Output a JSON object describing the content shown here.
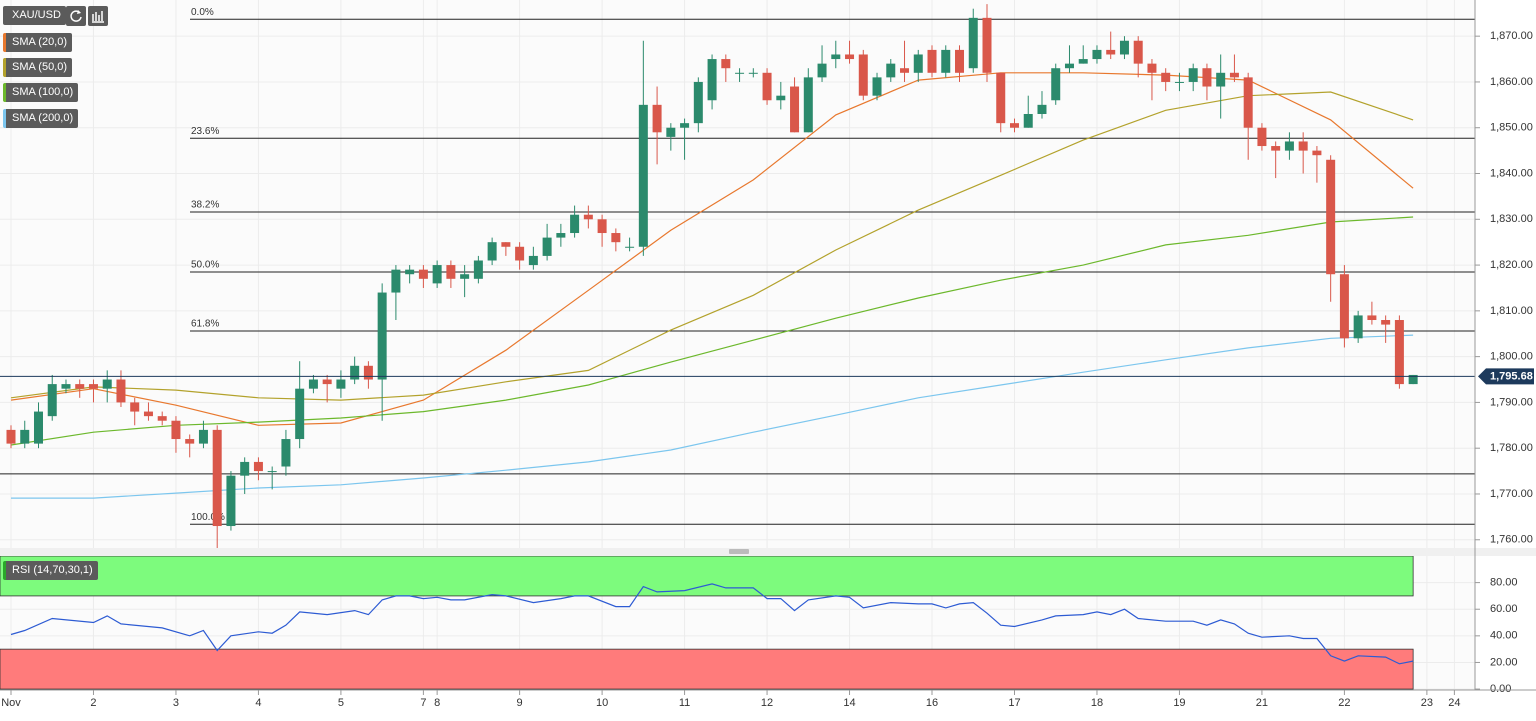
{
  "chart_data": [
    {
      "type": "candlestick",
      "symbol": "XAU/USD",
      "xlim": [
        -0.8,
        106.5
      ],
      "xticks": [
        {
          "value": 0,
          "label": "Nov"
        },
        {
          "value": 6,
          "label": "2"
        },
        {
          "value": 12,
          "label": "3"
        },
        {
          "value": 18,
          "label": "4"
        },
        {
          "value": 24,
          "label": "5"
        },
        {
          "value": 30,
          "label": "7"
        },
        {
          "value": 31,
          "label": "8"
        },
        {
          "value": 37,
          "label": "9"
        },
        {
          "value": 43,
          "label": "10"
        },
        {
          "value": 49,
          "label": "11"
        },
        {
          "value": 55,
          "label": "12"
        },
        {
          "value": 61,
          "label": "14"
        },
        {
          "value": 67,
          "label": "16"
        },
        {
          "value": 73,
          "label": "17"
        },
        {
          "value": 79,
          "label": "18"
        },
        {
          "value": 85,
          "label": "19"
        },
        {
          "value": 91,
          "label": "21"
        },
        {
          "value": 97,
          "label": "22"
        },
        {
          "value": 103,
          "label": "23"
        },
        {
          "value": 105,
          "label": "24"
        }
      ],
      "ylim": [
        1758.2,
        1877.9
      ],
      "yticks": [
        {
          "value": 1760,
          "label": "1,760.00"
        },
        {
          "value": 1770,
          "label": "1,770.00"
        },
        {
          "value": 1780,
          "label": "1,780.00"
        },
        {
          "value": 1790,
          "label": "1,790.00"
        },
        {
          "value": 1800,
          "label": "1,800.00"
        },
        {
          "value": 1810,
          "label": "1,810.00"
        },
        {
          "value": 1820,
          "label": "1,820.00"
        },
        {
          "value": 1830,
          "label": "1,830.00"
        },
        {
          "value": 1840,
          "label": "1,840.00"
        },
        {
          "value": 1850,
          "label": "1,850.00"
        },
        {
          "value": 1860,
          "label": "1,860.00"
        },
        {
          "value": 1870,
          "label": "1,870.00"
        }
      ],
      "grid": true,
      "up_color": "#2b8a6c",
      "down_color": "#d9574a",
      "x": [
        0,
        1,
        2,
        3,
        4,
        5,
        6,
        7,
        8,
        9,
        10,
        11,
        12,
        13,
        14,
        15,
        16,
        17,
        18,
        19,
        20,
        21,
        22,
        23,
        24,
        25,
        26,
        27,
        28,
        29,
        30,
        31,
        32,
        33,
        34,
        35,
        36,
        37,
        38,
        39,
        40,
        41,
        42,
        43,
        44,
        45,
        46,
        47,
        48,
        49,
        50,
        51,
        52,
        53,
        54,
        55,
        56,
        57,
        58,
        59,
        60,
        61,
        62,
        63,
        64,
        65,
        66,
        67,
        68,
        69,
        70,
        71,
        72,
        73,
        74,
        75,
        76,
        77,
        78,
        79,
        80,
        81,
        82,
        83,
        84,
        85,
        86,
        87,
        88,
        89,
        90,
        91,
        92,
        93,
        94,
        95,
        96,
        97,
        98,
        99,
        100,
        101,
        102
      ],
      "open": [
        1784,
        1781,
        1781,
        1787,
        1793,
        1794,
        1794,
        1793,
        1795,
        1790,
        1788,
        1787,
        1786,
        1782,
        1781,
        1784,
        1763,
        1774,
        1777,
        1775,
        1776,
        1782,
        1793,
        1795,
        1793,
        1795,
        1798,
        1795,
        1814,
        1818,
        1819,
        1816,
        1820,
        1817,
        1817,
        1821,
        1825,
        1824,
        1820,
        1822,
        1826,
        1827,
        1831,
        1830,
        1827,
        1824,
        1824,
        1855,
        1848,
        1850,
        1851,
        1856,
        1865,
        1862,
        1862,
        1862,
        1856,
        1859,
        1849,
        1861,
        1865,
        1866,
        1866,
        1857,
        1861,
        1863,
        1862,
        1867,
        1862,
        1867,
        1863,
        1874,
        1862,
        1851,
        1850,
        1853,
        1856,
        1863,
        1864,
        1865,
        1867,
        1866,
        1869,
        1864,
        1862,
        1860,
        1860,
        1863,
        1859,
        1862,
        1861,
        1850,
        1846,
        1845,
        1847,
        1845,
        1843,
        1818,
        1804,
        1809,
        1808,
        1808,
        1794
      ],
      "high": [
        1785,
        1786,
        1790,
        1796,
        1795,
        1795,
        1795,
        1797,
        1797,
        1791,
        1790,
        1788,
        1787,
        1783,
        1786,
        1785,
        1775,
        1778,
        1778,
        1776,
        1784,
        1799,
        1796,
        1796,
        1797,
        1800,
        1799,
        1816,
        1820,
        1820,
        1820,
        1821,
        1821,
        1820,
        1822,
        1826,
        1825,
        1825,
        1824,
        1829,
        1829,
        1833,
        1833,
        1831,
        1828,
        1826,
        1869,
        1859,
        1851,
        1852,
        1861,
        1866,
        1866,
        1863,
        1863,
        1863,
        1860,
        1861,
        1863,
        1868,
        1869,
        1869,
        1867,
        1862,
        1865,
        1869,
        1867,
        1868,
        1868,
        1868,
        1876,
        1877,
        1862,
        1852,
        1857,
        1858,
        1864,
        1868,
        1868,
        1868,
        1871,
        1870,
        1870,
        1865,
        1863,
        1862,
        1864,
        1864,
        1866,
        1866,
        1862,
        1851,
        1847,
        1849,
        1849,
        1846,
        1844,
        1820,
        1810,
        1812,
        1809,
        1809,
        1796
      ],
      "low": [
        1780,
        1780,
        1780,
        1786,
        1792,
        1791,
        1790,
        1790,
        1789,
        1785,
        1786,
        1785,
        1779,
        1778,
        1780,
        1758,
        1762,
        1770,
        1773,
        1771,
        1774,
        1780,
        1792,
        1790,
        1791,
        1794,
        1793,
        1786,
        1808,
        1816,
        1815,
        1815,
        1815,
        1813,
        1816,
        1820,
        1822,
        1819,
        1819,
        1821,
        1824,
        1826,
        1828,
        1824,
        1823,
        1823,
        1822,
        1842,
        1845,
        1843,
        1849,
        1854,
        1860,
        1860,
        1861,
        1855,
        1854,
        1849,
        1849,
        1860,
        1863,
        1864,
        1856,
        1856,
        1860,
        1860,
        1860,
        1861,
        1861,
        1860,
        1862,
        1860,
        1849,
        1849,
        1850,
        1852,
        1855,
        1862,
        1864,
        1864,
        1865,
        1865,
        1861,
        1856,
        1858,
        1858,
        1858,
        1856,
        1852,
        1860,
        1843,
        1845,
        1839,
        1843,
        1840,
        1838,
        1812,
        1802,
        1803,
        1807,
        1803,
        1793,
        1794
      ],
      "close": [
        1781,
        1784,
        1788,
        1794,
        1794,
        1793,
        1793,
        1795,
        1790,
        1788,
        1787,
        1786,
        1782,
        1781,
        1784,
        1763,
        1774,
        1777,
        1775,
        1775,
        1782,
        1793,
        1795,
        1794,
        1795,
        1798,
        1795,
        1814,
        1819,
        1819,
        1817,
        1820,
        1817,
        1818,
        1821,
        1825,
        1824,
        1821,
        1822,
        1826,
        1827,
        1831,
        1830,
        1827,
        1825,
        1824,
        1855,
        1849,
        1850,
        1851,
        1860,
        1865,
        1863,
        1862,
        1862,
        1856,
        1857,
        1849,
        1861,
        1864,
        1866,
        1865,
        1857,
        1861,
        1864,
        1862,
        1866,
        1862,
        1867,
        1862,
        1874,
        1862,
        1851,
        1850,
        1853,
        1855,
        1863,
        1864,
        1865,
        1867,
        1866,
        1869,
        1864,
        1862,
        1860,
        1860,
        1863,
        1859,
        1862,
        1861,
        1850,
        1846,
        1845,
        1847,
        1845,
        1844,
        1818,
        1804,
        1809,
        1808,
        1807,
        1794,
        1796
      ],
      "series": [
        {
          "name": "SMA (20,0)",
          "color": "#e8782e",
          "x": [
            0,
            6,
            12,
            18,
            24,
            30,
            36,
            42,
            48,
            54,
            60,
            66,
            72,
            78,
            84,
            90,
            96,
            102
          ],
          "values": [
            1790.5,
            1793,
            1789.4,
            1785,
            1785.5,
            1790.5,
            1801.4,
            1814.5,
            1827.6,
            1838.6,
            1852.8,
            1860.4,
            1862,
            1862,
            1861.5,
            1860.4,
            1851.7,
            1836.8
          ]
        },
        {
          "name": "SMA (50,0)",
          "color": "#b3a22c",
          "x": [
            0,
            6,
            12,
            18,
            24,
            30,
            36,
            42,
            48,
            54,
            60,
            66,
            72,
            78,
            84,
            90,
            96,
            102
          ],
          "values": [
            1791,
            1793.4,
            1792.7,
            1791,
            1790.5,
            1791.6,
            1794.5,
            1797,
            1805.8,
            1813.4,
            1823.3,
            1832,
            1839.6,
            1847.3,
            1853.8,
            1857,
            1857.8,
            1851.7
          ]
        },
        {
          "name": "SMA (100,0)",
          "color": "#6cb82c",
          "x": [
            0,
            6,
            12,
            18,
            24,
            30,
            36,
            42,
            48,
            54,
            60,
            66,
            72,
            78,
            84,
            90,
            96,
            102
          ],
          "values": [
            1780.7,
            1783.5,
            1785,
            1785.7,
            1786.6,
            1788,
            1790.5,
            1793.8,
            1798.8,
            1803.6,
            1808.4,
            1812.8,
            1816.7,
            1820,
            1824.4,
            1826.5,
            1829.4,
            1830.5
          ]
        },
        {
          "name": "SMA (200,0)",
          "color": "#7cc6ee",
          "x": [
            0,
            6,
            12,
            18,
            24,
            30,
            36,
            42,
            48,
            54,
            60,
            66,
            72,
            78,
            84,
            90,
            96,
            102
          ],
          "values": [
            1769.1,
            1769.1,
            1770.2,
            1771.3,
            1772,
            1773.5,
            1775.2,
            1777,
            1779.6,
            1783.5,
            1787.2,
            1791,
            1793.8,
            1796.6,
            1799.3,
            1801.9,
            1804,
            1804.7
          ]
        }
      ],
      "levels": [
        {
          "label": "0.0%",
          "value": 1873.7
        },
        {
          "label": "23.6%",
          "value": 1847.7
        },
        {
          "label": "38.2%",
          "value": 1831.6
        },
        {
          "label": "50.0%",
          "value": 1818.5
        },
        {
          "label": "61.8%",
          "value": 1805.6
        },
        {
          "label": "100.0%",
          "value": 1763.4
        },
        {
          "value": 1774.4
        }
      ],
      "price_line": {
        "value": 1795.68,
        "label": "1,795.68",
        "color": "#1d3a5c"
      }
    },
    {
      "type": "line",
      "label": "RSI (14,70,30,1)",
      "xlim": [
        -0.8,
        106.5
      ],
      "ylim": [
        -0.7,
        100
      ],
      "yticks": [
        {
          "value": 0,
          "label": "0.00"
        },
        {
          "value": 20,
          "label": "20.00"
        },
        {
          "value": 40,
          "label": "40.00"
        },
        {
          "value": 60,
          "label": "60.00"
        },
        {
          "value": 80,
          "label": "80.00"
        }
      ],
      "bands": [
        {
          "from": 70,
          "to": 100,
          "color": "#7dfb7d"
        },
        {
          "from": 0,
          "to": 30,
          "color": "#ff7b7b"
        }
      ],
      "series": [
        {
          "color": "#2d5bd3",
          "x": [
            0,
            1,
            3,
            6,
            7,
            8,
            11,
            13,
            14,
            15,
            16,
            18,
            19,
            20,
            21,
            23,
            25,
            26,
            27,
            28,
            29,
            30,
            31,
            32,
            33,
            35,
            36,
            38,
            40,
            41,
            42,
            44,
            45,
            46,
            47,
            49,
            51,
            52,
            54,
            55,
            56,
            57,
            58,
            60,
            61,
            62,
            64,
            66,
            67,
            68,
            69,
            70,
            71,
            72,
            73,
            75,
            76,
            78,
            79,
            80,
            81,
            82,
            84,
            86,
            87,
            88,
            89,
            90,
            91,
            93,
            94,
            95,
            96,
            97,
            98,
            100,
            101,
            102
          ],
          "values": [
            41,
            44,
            53,
            50,
            55,
            49,
            46,
            40,
            44,
            29,
            40,
            43,
            42,
            48,
            58,
            56,
            59,
            56,
            67,
            70,
            70,
            68,
            69,
            67,
            67,
            71,
            70,
            65,
            68,
            70,
            70,
            62,
            62,
            77,
            73,
            74,
            79,
            76,
            76,
            68,
            68,
            59,
            67,
            70,
            69,
            61,
            65,
            64,
            64,
            61,
            64,
            65,
            57,
            48,
            47,
            52,
            55,
            56,
            58,
            56,
            60,
            53,
            51,
            51,
            48,
            52,
            49,
            42,
            39,
            40,
            38,
            38,
            25,
            21,
            25,
            24,
            19,
            21
          ]
        }
      ]
    }
  ]
}
